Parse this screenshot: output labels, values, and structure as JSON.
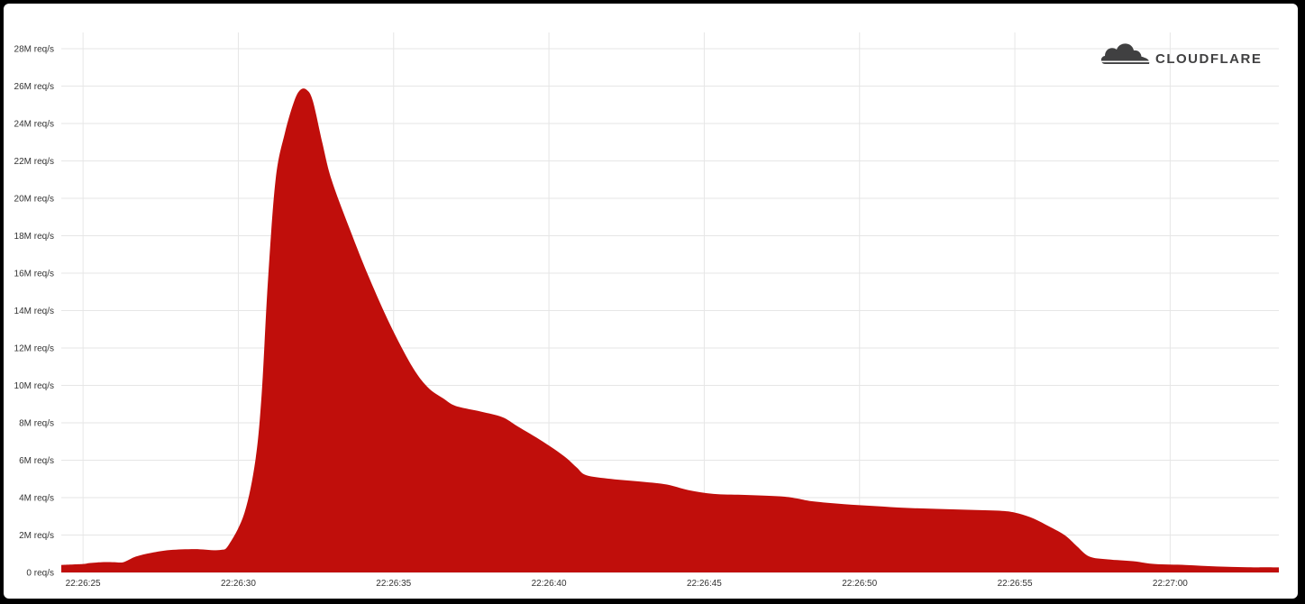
{
  "brand": {
    "name": "CLOUDFLARE",
    "logo_icon": "cloud-icon",
    "logo_color": "#404041"
  },
  "chart_data": {
    "type": "area",
    "title": "",
    "xlabel": "",
    "ylabel": "",
    "color": "#c00e0b",
    "grid": true,
    "x_axis": {
      "ticks": [
        "22:26:25",
        "22:26:30",
        "22:26:35",
        "22:26:40",
        "22:26:45",
        "22:26:50",
        "22:26:55",
        "22:27:00"
      ]
    },
    "y_axis": {
      "unit": "M req/s",
      "range": [
        0,
        28
      ],
      "ticks": [
        "0 req/s",
        "2M req/s",
        "4M req/s",
        "6M req/s",
        "8M req/s",
        "10M req/s",
        "12M req/s",
        "14M req/s",
        "16M req/s",
        "18M req/s",
        "20M req/s",
        "22M req/s",
        "24M req/s",
        "26M req/s",
        "28M req/s"
      ]
    },
    "x_range_seconds_from_first_tick": [
      -0.7,
      38.5
    ],
    "series": [
      {
        "values": [
          [
            -0.7,
            0.4
          ],
          [
            0,
            0.45
          ],
          [
            0.2,
            0.5
          ],
          [
            0.6,
            0.55
          ],
          [
            1.0,
            0.55
          ],
          [
            1.3,
            0.55
          ],
          [
            1.7,
            0.85
          ],
          [
            2.2,
            1.05
          ],
          [
            2.8,
            1.2
          ],
          [
            3.6,
            1.25
          ],
          [
            4.4,
            1.2
          ],
          [
            4.7,
            1.5
          ],
          [
            5.2,
            3.2
          ],
          [
            5.55,
            6.0
          ],
          [
            5.75,
            9.5
          ],
          [
            5.95,
            15.5
          ],
          [
            6.2,
            21.0
          ],
          [
            6.5,
            23.5
          ],
          [
            6.8,
            25.2
          ],
          [
            7.0,
            25.8
          ],
          [
            7.2,
            25.8
          ],
          [
            7.4,
            25.2
          ],
          [
            7.7,
            23.0
          ],
          [
            8.0,
            21.0
          ],
          [
            8.6,
            18.3
          ],
          [
            9.2,
            15.8
          ],
          [
            9.9,
            13.2
          ],
          [
            10.6,
            11.0
          ],
          [
            11.1,
            9.9
          ],
          [
            11.6,
            9.3
          ],
          [
            12.0,
            8.9
          ],
          [
            12.8,
            8.6
          ],
          [
            13.5,
            8.3
          ],
          [
            14.0,
            7.8
          ],
          [
            14.8,
            7.0
          ],
          [
            15.5,
            6.2
          ],
          [
            15.9,
            5.6
          ],
          [
            16.2,
            5.2
          ],
          [
            17.0,
            5.0
          ],
          [
            18.0,
            4.85
          ],
          [
            18.8,
            4.7
          ],
          [
            19.5,
            4.4
          ],
          [
            20.3,
            4.2
          ],
          [
            21.2,
            4.15
          ],
          [
            22.0,
            4.1
          ],
          [
            22.6,
            4.05
          ],
          [
            23.0,
            3.95
          ],
          [
            23.5,
            3.8
          ],
          [
            24.5,
            3.65
          ],
          [
            25.5,
            3.55
          ],
          [
            26.5,
            3.45
          ],
          [
            27.5,
            3.4
          ],
          [
            28.5,
            3.35
          ],
          [
            29.5,
            3.3
          ],
          [
            30.0,
            3.2
          ],
          [
            30.5,
            2.95
          ],
          [
            31.0,
            2.55
          ],
          [
            31.6,
            2.0
          ],
          [
            32.0,
            1.4
          ],
          [
            32.4,
            0.85
          ],
          [
            33.0,
            0.7
          ],
          [
            33.8,
            0.6
          ],
          [
            34.5,
            0.45
          ],
          [
            35.5,
            0.4
          ],
          [
            36.5,
            0.32
          ],
          [
            37.5,
            0.28
          ],
          [
            38.5,
            0.27
          ]
        ]
      }
    ]
  }
}
